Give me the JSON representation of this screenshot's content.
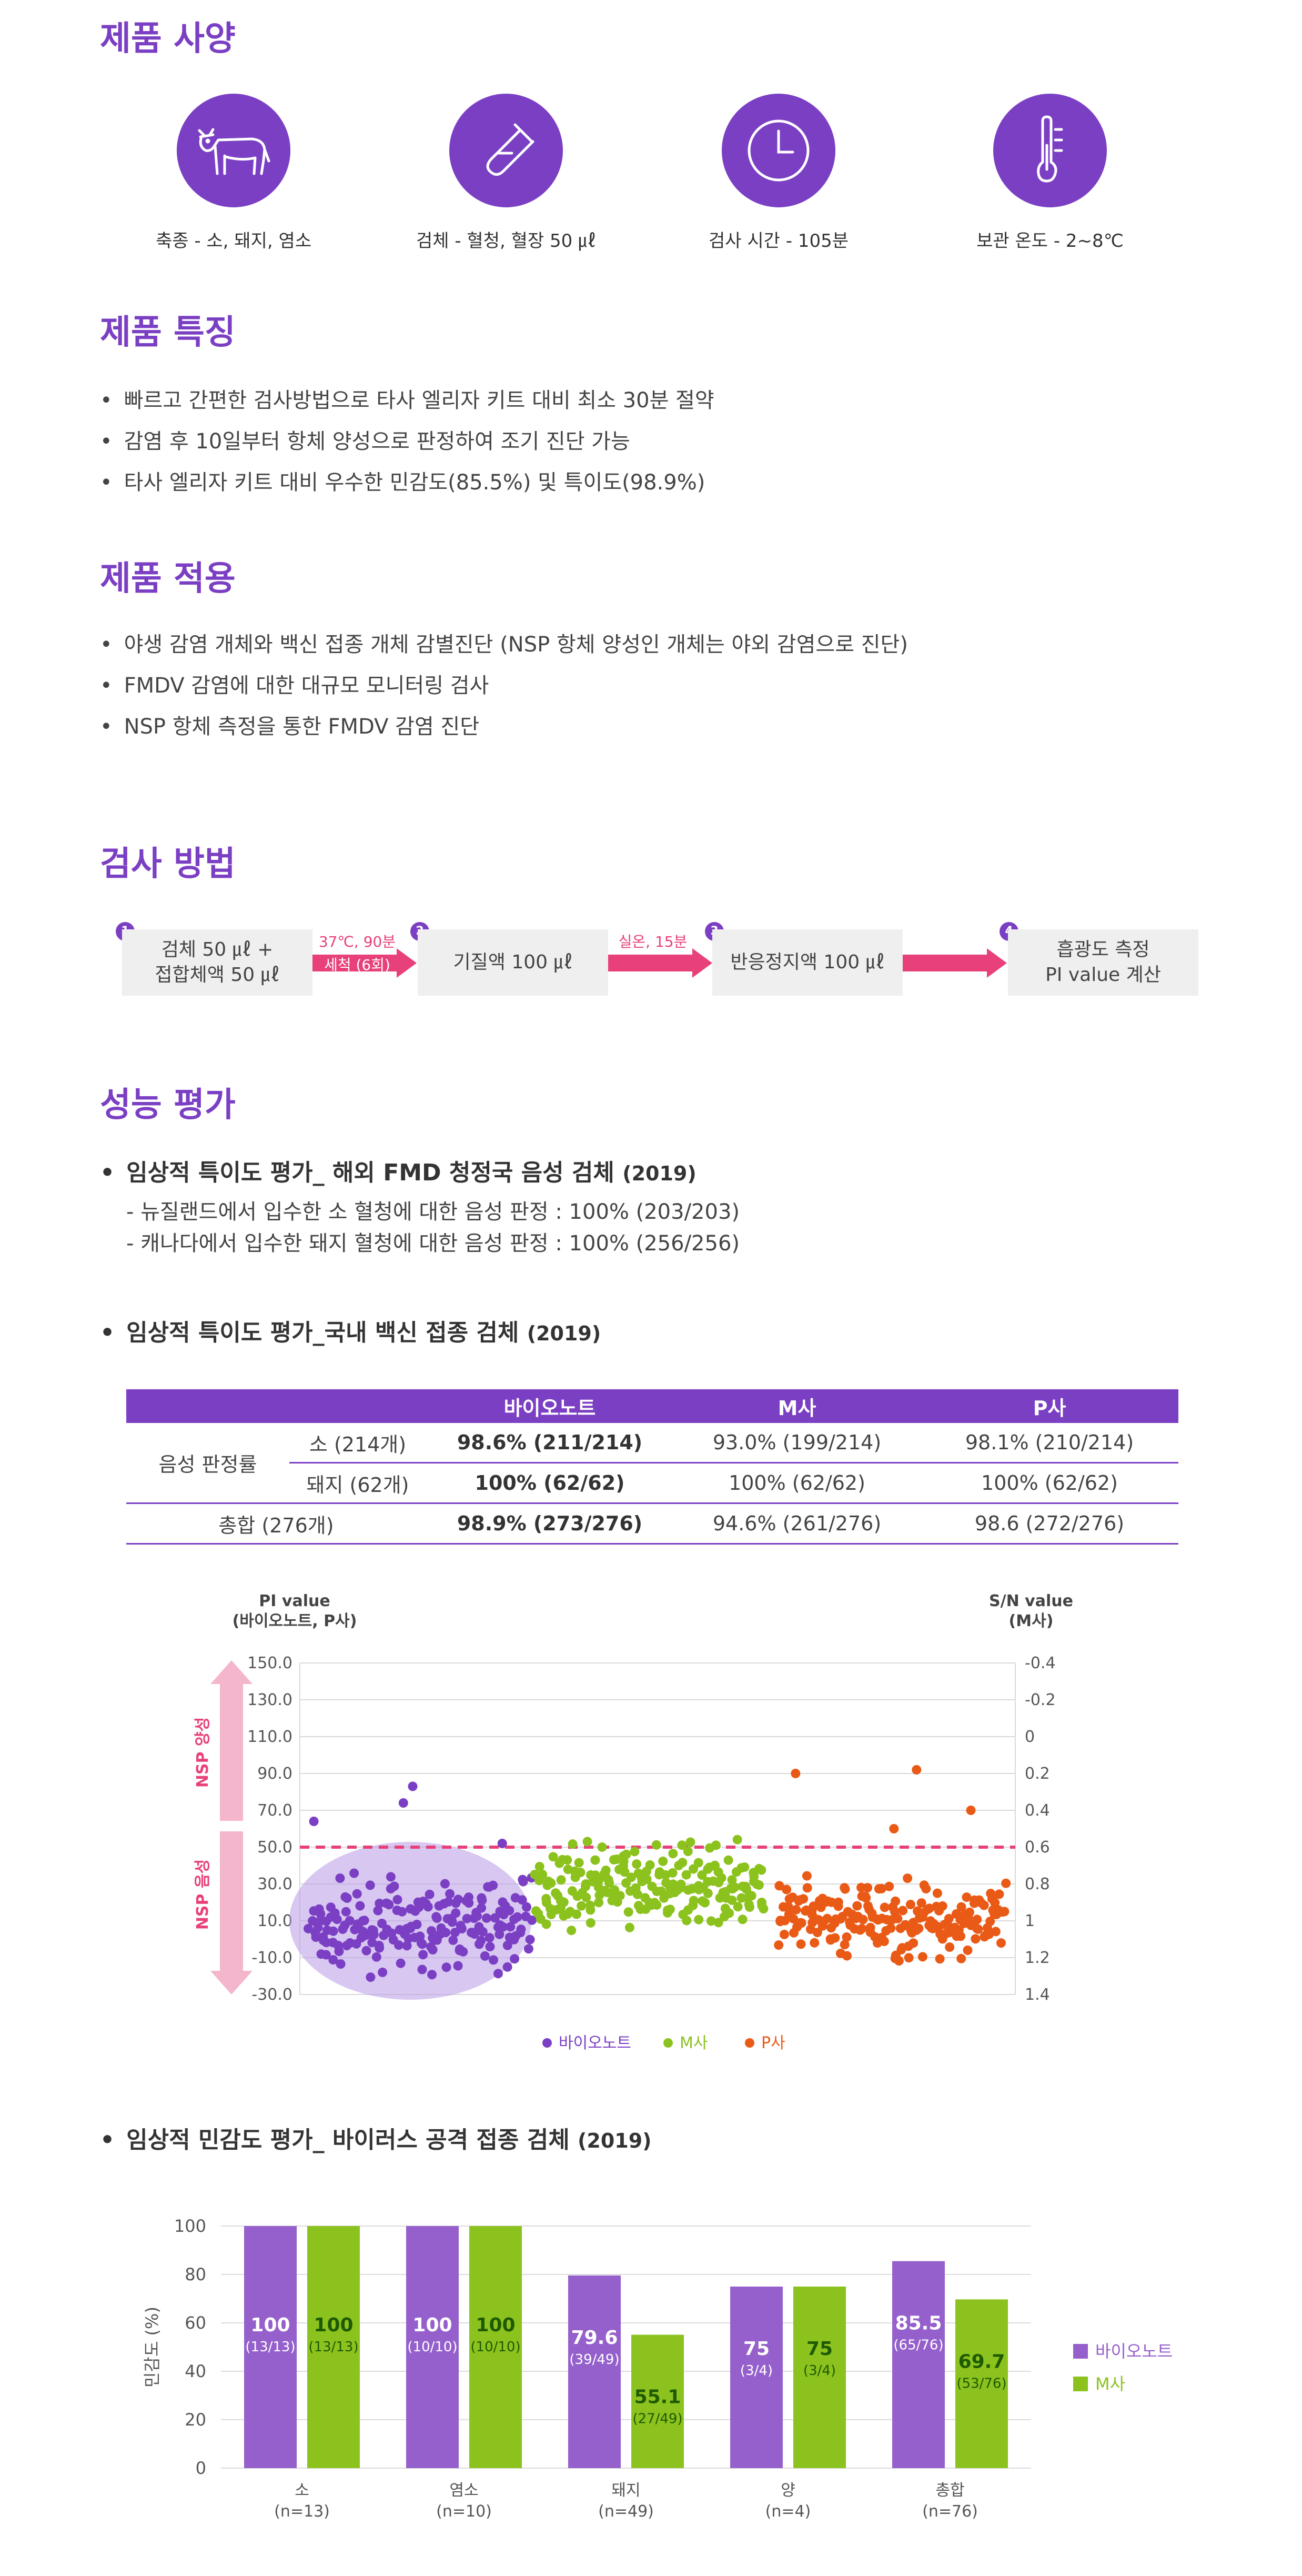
{
  "spec": {
    "title": "제품 사양",
    "items": [
      {
        "icon": "cow-icon",
        "label": "축종 - 소, 돼지, 염소"
      },
      {
        "icon": "test-tube-icon",
        "label": "검체 - 혈청, 혈장 50 ㎕"
      },
      {
        "icon": "clock-icon",
        "label": "검사 시간 - 105분"
      },
      {
        "icon": "thermometer-icon",
        "label": "보관 온도 - 2~8℃"
      }
    ]
  },
  "features": {
    "title": "제품 특징",
    "items": [
      "빠르고 간편한 검사방법으로 타사 엘리자 키트 대비 최소 30분 절약",
      "감염 후 10일부터 항체 양성으로 판정하여 조기 진단 가능",
      "타사 엘리자 키트 대비 우수한 민감도(85.5%) 및 특이도(98.9%)"
    ]
  },
  "application": {
    "title": "제품 적용",
    "items": [
      "야생 감염 개체와 백신 접종 개체 감별진단 (NSP 항체 양성인 개체는 야외 감염으로 진단)",
      "FMDV 감염에 대한 대규모 모니터링 검사",
      "NSP 항체 측정을 통한 FMDV 감염 진단"
    ]
  },
  "method": {
    "title": "검사 방법",
    "steps": [
      {
        "num": "1",
        "line1": "검체 50 ㎕ +",
        "line2": "접합체액 50 ㎕"
      },
      {
        "num": "2",
        "line1": "기질액 100 ㎕",
        "line2": ""
      },
      {
        "num": "3",
        "line1": "반응정지액 100 ㎕",
        "line2": ""
      },
      {
        "num": "4",
        "line1": "흡광도 측정",
        "line2": "PI value 계산"
      }
    ],
    "arrows": [
      {
        "top": "37℃, 90분",
        "bottom": "세척 (6회)"
      },
      {
        "top": "실온, 15분",
        "bottom": ""
      }
    ],
    "colors": {
      "accent": "#e8407a",
      "brand": "#7b3fc4",
      "box": "#efefef"
    }
  },
  "performance": {
    "title": "성능 평가",
    "spec_overseas": {
      "heading": "임상적 특이도 평가_ 해외 FMD 청정국 음성 검체",
      "year": "(2019)",
      "lines": [
        "- 뉴질랜드에서 입수한 소 혈청에 대한 음성 판정 : 100% (203/203)",
        "- 캐나다에서 입수한 돼지 혈청에 대한 음성 판정 : 100% (256/256)"
      ]
    },
    "spec_domestic": {
      "heading": "임상적 특이도 평가_국내 백신 접종 검체",
      "year": "(2019)",
      "table": {
        "headers": [
          "",
          "",
          "바이오노트",
          "M사",
          "P사"
        ],
        "group_label": "음성 판정률",
        "rows": [
          {
            "label": "소 (214개)",
            "values": [
              "98.6% (211/214)",
              "93.0% (199/214)",
              "98.1% (210/214)"
            ]
          },
          {
            "label": "돼지 (62개)",
            "values": [
              "100% (62/62)",
              "100% (62/62)",
              "100% (62/62)"
            ]
          },
          {
            "label": "총합 (276개)",
            "values": [
              "98.9% (273/276)",
              "94.6% (261/276)",
              "98.6 (272/276)"
            ]
          }
        ]
      }
    },
    "sensitivity": {
      "heading": "임상적 민감도 평가_ 바이러스 공격 접종 검체",
      "year": "(2019)"
    }
  },
  "chart_data": [
    {
      "type": "scatter",
      "y_left_label": "PI value",
      "y_left_sublabel": "(바이오노트, P사)",
      "y_right_label": "S/N value",
      "y_right_sublabel": "(M사)",
      "y_left_ticks": [
        "150.0",
        "130.0",
        "110.0",
        "90.0",
        "70.0",
        "50.0",
        "30.0",
        "10.0",
        "-10.0",
        "-30.0"
      ],
      "y_right_ticks": [
        "-0.4",
        "-0.2",
        "0",
        "0.2",
        "0.4",
        "0.6",
        "0.8",
        "1",
        "1.2",
        "1.4"
      ],
      "ylim_left": [
        -30,
        150
      ],
      "ylim_right": [
        1.4,
        -0.4
      ],
      "cutoff_pi": 50,
      "zone_top_label": "NSP 양성",
      "zone_bottom_label": "NSP 음성",
      "grid": true,
      "legend_position": "bottom",
      "series": [
        {
          "name": "바이오노트",
          "color": "#7b3fc4",
          "count": 190,
          "typical_range": [
            -25,
            40
          ],
          "outliers": [
            {
              "x": 3,
              "y": 64
            },
            {
              "x": 88,
              "y": 83
            },
            {
              "x": 80,
              "y": 74
            },
            {
              "x": 165,
              "y": 52
            }
          ]
        },
        {
          "name": "M사",
          "color": "#8cc21e",
          "count": 200,
          "typical_range": [
            0,
            58
          ]
        },
        {
          "name": "P사",
          "color": "#ea5a17",
          "count": 200,
          "typical_range": [
            -20,
            40
          ],
          "outliers": [
            {
              "x": 15,
              "y": 90
            },
            {
              "x": 122,
              "y": 92
            },
            {
              "x": 170,
              "y": 70
            },
            {
              "x": 102,
              "y": 60
            }
          ]
        }
      ]
    },
    {
      "type": "bar",
      "ylabel": "민감도 (%)",
      "ylim": [
        0,
        100
      ],
      "y_ticks": [
        "0",
        "20",
        "40",
        "60",
        "80",
        "100"
      ],
      "legend_position": "right",
      "categories": [
        {
          "name": "소",
          "n": "(n=13)"
        },
        {
          "name": "염소",
          "n": "(n=10)"
        },
        {
          "name": "돼지",
          "n": "(n=49)"
        },
        {
          "name": "양",
          "n": "(n=4)"
        },
        {
          "name": "총합",
          "n": "(n=76)"
        }
      ],
      "series": [
        {
          "name": "바이오노트",
          "color": "#9560cc",
          "values": [
            100,
            100,
            79.6,
            75,
            85.5
          ],
          "labels": [
            "100",
            "100",
            "79.6",
            "75",
            "85.5"
          ],
          "sublabels": [
            "(13/13)",
            "(10/10)",
            "(39/49)",
            "(3/4)",
            "(65/76)"
          ]
        },
        {
          "name": "M사",
          "color": "#8cc21e",
          "values": [
            100,
            100,
            55.1,
            75,
            69.7
          ],
          "labels": [
            "100",
            "100",
            "55.1",
            "75",
            "69.7"
          ],
          "sublabels": [
            "(13/13)",
            "(10/10)",
            "(27/49)",
            "(3/4)",
            "(53/76)"
          ]
        }
      ]
    }
  ]
}
